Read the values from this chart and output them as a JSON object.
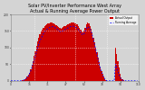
{
  "title": "Solar PV/Inverter Performance West Array\nActual & Running Average Power Output",
  "title_fontsize": 3.5,
  "bg_color": "#d4d4d4",
  "plot_bg_color": "#d4d4d4",
  "bar_color": "#cc0000",
  "avg_line_color": "#0000ff",
  "grid_color": "#ffffff",
  "ylabel": "Watts",
  "ylabel_fontsize": 3.0,
  "xlabel_fontsize": 2.5,
  "tick_fontsize": 2.2,
  "n_bars": 110,
  "bar_values": [
    0,
    0,
    0,
    0,
    0,
    0,
    0,
    0,
    0,
    0,
    2,
    3,
    5,
    8,
    12,
    18,
    25,
    35,
    48,
    60,
    75,
    90,
    105,
    120,
    130,
    140,
    148,
    155,
    160,
    165,
    168,
    170,
    172,
    174,
    176,
    175,
    174,
    172,
    170,
    168,
    165,
    163,
    160,
    158,
    160,
    162,
    164,
    166,
    168,
    170,
    172,
    174,
    175,
    176,
    175,
    174,
    172,
    170,
    165,
    160,
    155,
    148,
    145,
    150,
    160,
    170,
    175,
    172,
    165,
    158,
    145,
    130,
    115,
    100,
    85,
    70,
    55,
    42,
    30,
    20,
    12,
    6,
    2,
    0,
    0,
    0,
    0,
    0,
    0,
    0,
    100,
    80,
    60,
    40,
    20,
    10,
    5,
    2,
    0,
    0,
    0,
    0,
    0,
    0,
    0,
    0,
    0,
    0,
    0,
    0
  ],
  "avg_values": [
    0,
    0,
    0,
    0,
    0,
    0,
    0,
    0,
    0,
    0,
    1,
    2,
    4,
    7,
    10,
    15,
    22,
    30,
    40,
    52,
    62,
    74,
    86,
    98,
    110,
    120,
    128,
    135,
    142,
    148,
    152,
    155,
    158,
    160,
    162,
    163,
    163,
    162,
    160,
    158,
    155,
    152,
    149,
    147,
    149,
    151,
    153,
    155,
    157,
    159,
    161,
    163,
    164,
    165,
    164,
    163,
    161,
    158,
    154,
    150,
    146,
    141,
    138,
    142,
    150,
    158,
    163,
    161,
    156,
    150,
    138,
    124,
    110,
    95,
    80,
    65,
    50,
    38,
    27,
    18,
    10,
    5,
    1,
    0,
    0,
    0,
    0,
    0,
    0,
    0,
    50,
    40,
    30,
    20,
    10,
    5,
    2,
    1,
    0,
    0,
    0,
    0,
    0,
    0,
    0,
    0,
    0,
    0,
    0,
    0
  ],
  "ylim_max": 200,
  "legend_labels": [
    "Actual Output",
    "Running Average"
  ],
  "legend_colors": [
    "#cc0000",
    "#0000ff"
  ],
  "white_vlines": [
    20,
    55,
    83
  ],
  "white_hlines": [
    50,
    100,
    150
  ]
}
